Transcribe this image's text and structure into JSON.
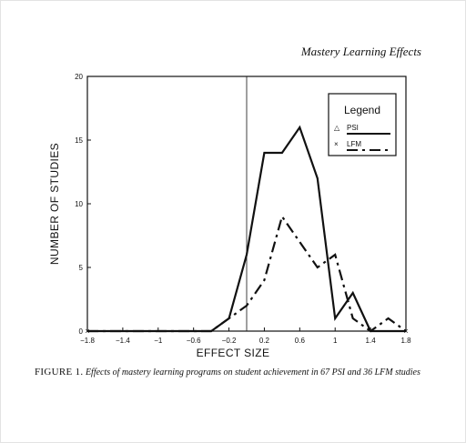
{
  "page": {
    "running_head": "Mastery Learning Effects"
  },
  "caption": {
    "label": "FIGURE 1.",
    "text": "Effects of mastery learning programs on student achievement in 67 PSI and 36 LFM studies"
  },
  "chart_data": {
    "type": "line",
    "xlabel": "EFFECT SIZE",
    "ylabel": "NUMBER OF STUDIES",
    "xlim": [
      -1.8,
      1.8
    ],
    "ylim": [
      0,
      20
    ],
    "x_ticks": [
      -1.8,
      -1.4,
      -1,
      -0.6,
      -0.2,
      0.2,
      0.6,
      1,
      1.4,
      1.8
    ],
    "x_tick_labels": [
      "−1.8",
      "−1.4",
      "−1",
      "−0.6",
      "−0.2",
      "0.2",
      "0.6",
      "1",
      "1.4",
      "1.8"
    ],
    "y_ticks": [
      0,
      5,
      10,
      15,
      20
    ],
    "y_tick_labels": [
      "0",
      "5",
      "10",
      "15",
      "20"
    ],
    "reference_line_x": 0,
    "grid": false,
    "legend": {
      "title": "Legend",
      "position": "top-right",
      "entries": [
        {
          "marker": "△",
          "label": "PSI",
          "style": "solid"
        },
        {
          "marker": "×",
          "label": "LFM",
          "style": "dash-dot"
        }
      ]
    },
    "series": [
      {
        "name": "PSI",
        "style": "solid",
        "x": [
          -1.8,
          -0.4,
          -0.2,
          0,
          0.2,
          0.4,
          0.6,
          0.8,
          1,
          1.2,
          1.4,
          1.6,
          1.8
        ],
        "y": [
          0,
          0,
          1,
          6,
          14,
          14,
          16,
          12,
          1,
          3,
          0,
          0,
          0
        ]
      },
      {
        "name": "LFM",
        "style": "dash-dot",
        "x": [
          -1.8,
          -0.4,
          -0.2,
          0,
          0.2,
          0.4,
          0.6,
          0.8,
          1,
          1.2,
          1.4,
          1.6,
          1.8
        ],
        "y": [
          0,
          0,
          1,
          2,
          4,
          9,
          7,
          5,
          6,
          1,
          0,
          1,
          0
        ]
      }
    ],
    "colors": {
      "ink": "#111111"
    }
  }
}
